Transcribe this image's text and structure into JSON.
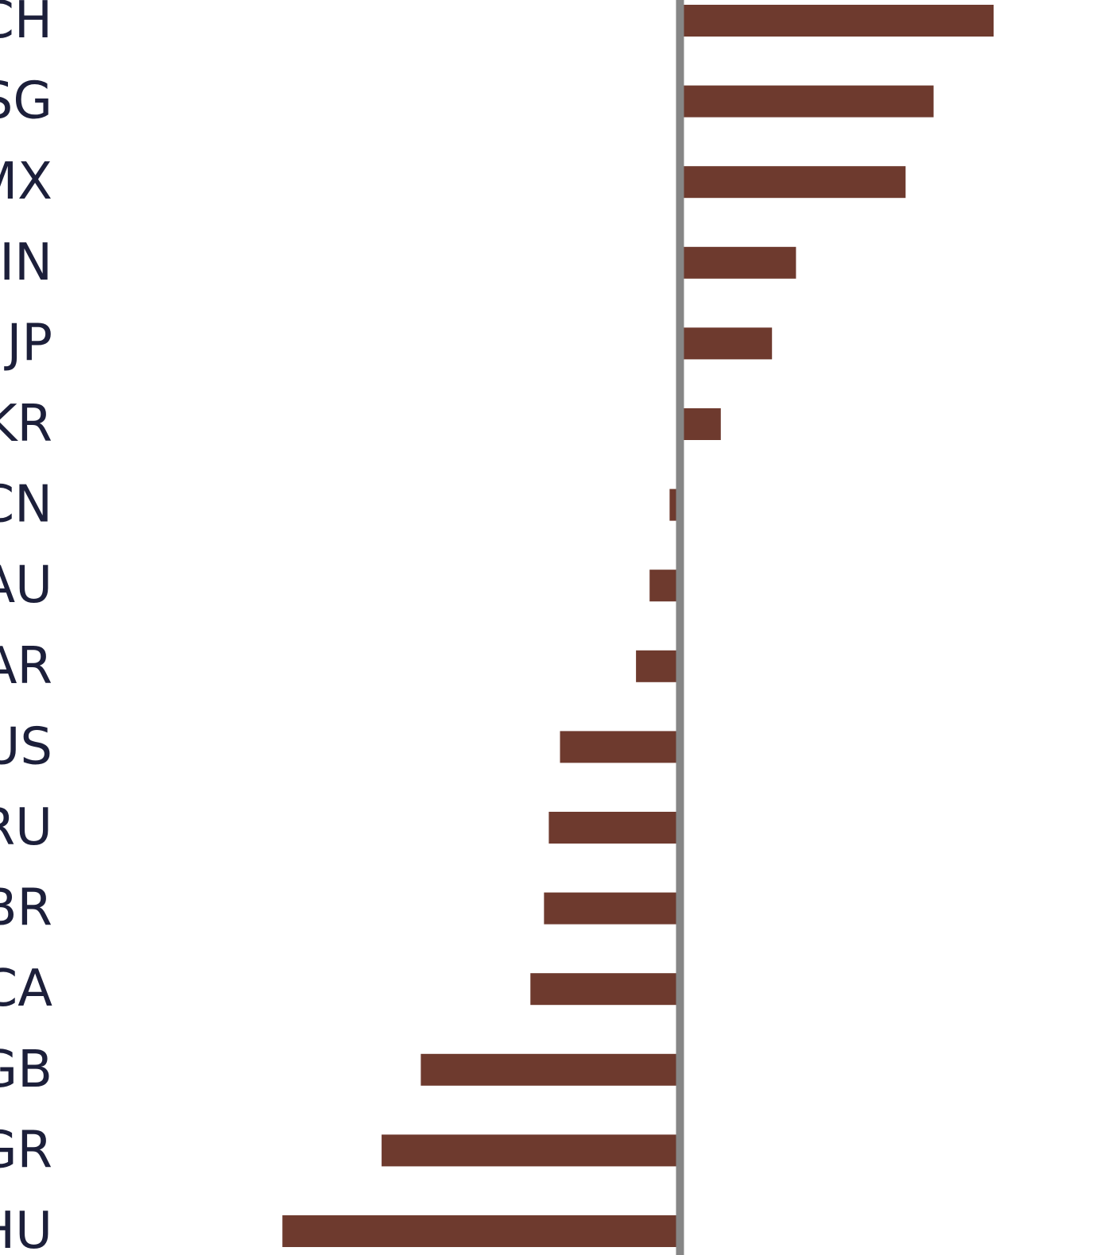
{
  "colors": {
    "bar": "#6e3a2e",
    "axis": "#868686",
    "text": "#1c1f3a",
    "background": "#ffffff"
  },
  "chart_data": {
    "type": "bar",
    "orientation": "horizontal",
    "categories": [
      "CH",
      "SG",
      "MX",
      "IN",
      "JP",
      "KR",
      "CN",
      "AU",
      "AR",
      "US",
      "RU",
      "BR",
      "CA",
      "GB",
      "GR",
      "HU"
    ],
    "values": [
      3.92,
      3.17,
      2.82,
      1.45,
      1.15,
      0.51,
      -0.13,
      -0.38,
      -0.55,
      -1.5,
      -1.64,
      -1.7,
      -1.87,
      -3.24,
      -3.73,
      -4.97
    ],
    "xlim": [
      -8.5,
      5.5
    ],
    "zero_line": true,
    "grid": false,
    "legend": "none",
    "title": "",
    "xlabel": "",
    "ylabel": ""
  }
}
